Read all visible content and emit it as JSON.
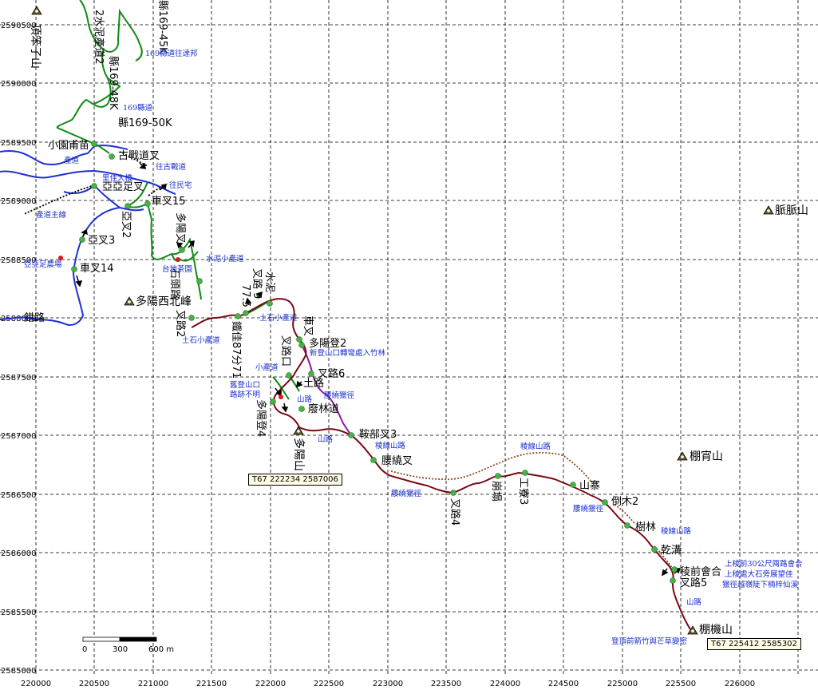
{
  "map": {
    "x_ticks": [
      "220000",
      "220500",
      "221000",
      "221500",
      "222000",
      "222500",
      "223000",
      "223500",
      "224000",
      "224500",
      "225000",
      "225500",
      "226000"
    ],
    "y_ticks": [
      "2590500",
      "2590000",
      "2589500",
      "2589000",
      "2588500",
      "2588000",
      "2587500",
      "2587000",
      "2586500",
      "2586000",
      "2585500",
      "2585000"
    ],
    "scale_bar": {
      "zero": "0",
      "mid": "300",
      "end": "600 m"
    },
    "coord_boxes": [
      {
        "label": "T67  222234  2587006"
      },
      {
        "label": "T67  225412  2585302"
      }
    ],
    "peaks": [
      {
        "name": "頂笨子山"
      },
      {
        "name": "多陽西北峰"
      },
      {
        "name": "多陽山"
      },
      {
        "name": "脈脈山"
      },
      {
        "name": "棚宵山"
      },
      {
        "name": "棚機山"
      }
    ],
    "labels_black": [
      "2水泥產道2",
      "縣169-45K",
      "縣169-48K",
      "縣169-50K",
      "小園甫苗",
      "古戰道叉",
      "亞亞足叉",
      "車叉15",
      "亞叉2",
      "亞叉3",
      "車叉14",
      "多陽叉",
      "石頭路",
      "叉路2",
      "錯路",
      "77.5",
      "叉路 9",
      "水泥",
      "車叉",
      "鐵佳87分71",
      "叉路口",
      "多陽登2",
      "叉路6",
      "土路",
      "多陽登4",
      "廢林道",
      "鞍部叉3",
      "腰繞叉",
      "叉路4",
      "崩塌",
      "工寮3",
      "山寨",
      "倒木2",
      "樹林",
      "乾溝",
      "稜前會合",
      "叉路5"
    ],
    "labels_blue": [
      "169縣道往達邦",
      "169縣道",
      "產道",
      "往古戰道",
      "里佳大橋",
      "往民宅",
      "產道主線",
      "亞亞足農場",
      "水泥小產道",
      "台地茶園",
      "土石小產道",
      "土石小產道",
      "新登山口轉彎處入竹林",
      "小產道",
      "山路",
      "舊登山口",
      "路跡不明",
      "腰繞獵徑",
      "山路",
      "稜線山路",
      "腰繞獵徑",
      "稜線山路",
      "腰繞獵徑",
      "稜線山路",
      "上稜前30公尺兩路會合",
      "上稜處大石旁展望佳",
      "獵徑越嶺陡下楠梓仙溪",
      "山路",
      "登頂前箭竹與芒草變密"
    ]
  }
}
